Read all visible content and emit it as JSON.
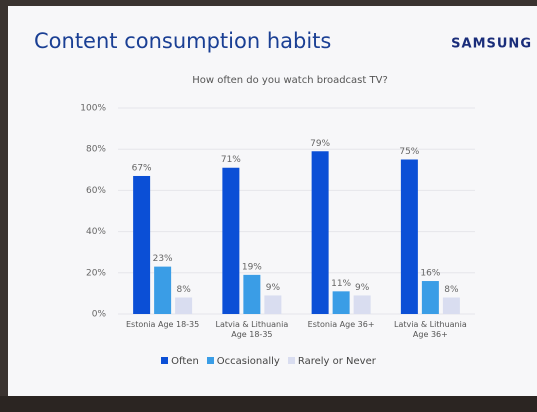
{
  "slide": {
    "title": "Content consumption habits",
    "brand": "SAMSUNG"
  },
  "chart_data": {
    "type": "bar",
    "title": "How often do you watch broadcast TV?",
    "categories": [
      "Estonia Age 18-35",
      "Latvia & Lithuania Age 18-35",
      "Estonia Age 36+",
      "Latvia & Lithuania Age 36+"
    ],
    "series": [
      {
        "name": "Often",
        "color": "#0b4fd6",
        "values": [
          67,
          71,
          79,
          75
        ],
        "value_labels": [
          "67%",
          "71%",
          "79%",
          "75%"
        ]
      },
      {
        "name": "Occasionally",
        "color": "#3a9de6",
        "values": [
          23,
          19,
          11,
          16
        ],
        "value_labels": [
          "23%",
          "19%",
          "11%",
          "16%"
        ]
      },
      {
        "name": "Rarely or Never",
        "color": "#d9ddf0",
        "values": [
          8,
          9,
          9,
          8
        ],
        "value_labels": [
          "8%",
          "9%",
          "9%",
          "8%"
        ]
      }
    ],
    "ylim": [
      0,
      100
    ],
    "yticks": [
      {
        "value": 0,
        "label": "0%"
      },
      {
        "value": 20,
        "label": "20%"
      },
      {
        "value": 40,
        "label": "40%"
      },
      {
        "value": 60,
        "label": "60%"
      },
      {
        "value": 80,
        "label": "80%"
      },
      {
        "value": 100,
        "label": "100%"
      }
    ],
    "grid": true,
    "legend": "bottom"
  }
}
